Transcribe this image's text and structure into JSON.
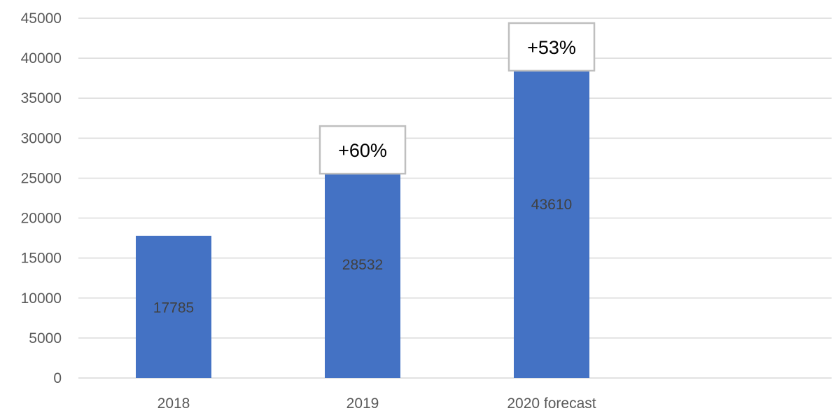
{
  "chart_data": {
    "type": "bar",
    "categories": [
      "2018",
      "2019",
      "2020 forecast"
    ],
    "values": [
      17785,
      28532,
      43610
    ],
    "data_labels": [
      "17785",
      "28532",
      "43610"
    ],
    "callouts": [
      "",
      "+60%",
      "+53%"
    ],
    "ylim": [
      0,
      45000
    ],
    "yticks": [
      "0",
      "5000",
      "10000",
      "15000",
      "20000",
      "25000",
      "30000",
      "35000",
      "40000",
      "45000"
    ],
    "grid": true,
    "legend": "none",
    "colors": {
      "bar": "#4472C4",
      "grid": "#D9D9D9",
      "callout_border": "#BFBFBF"
    }
  }
}
